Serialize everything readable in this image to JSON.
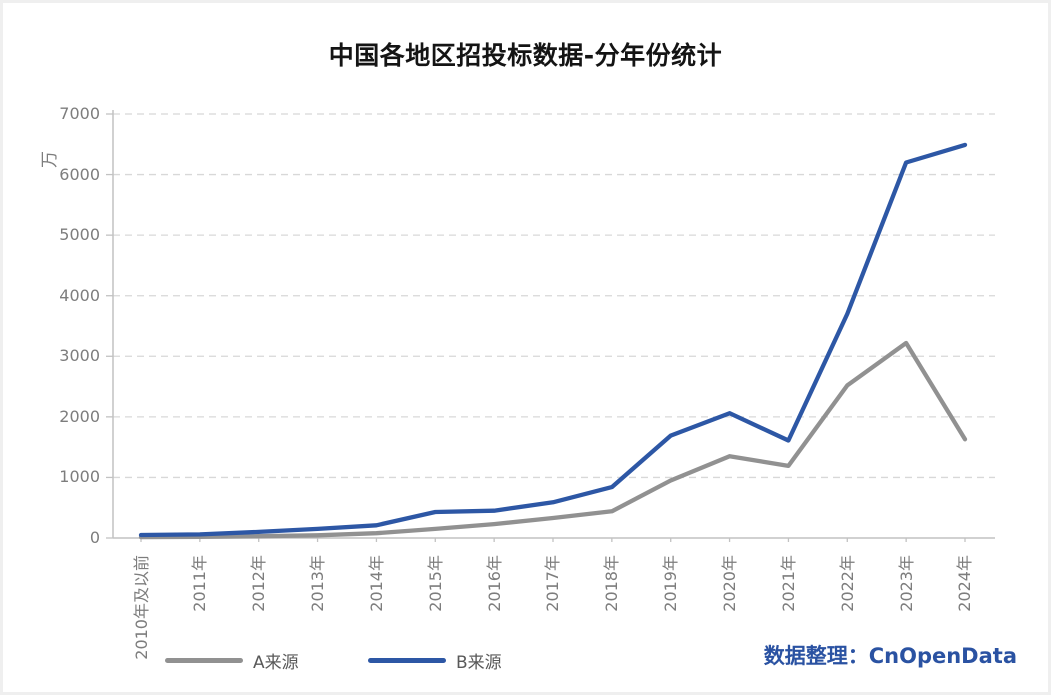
{
  "chart": {
    "attribution": "数据整理：CnOpenData",
    "accent_color": "#2a52a2",
    "axis_color": "#c2c2c2",
    "grid_color": "#d8d8d8",
    "tick_label_color": "#7d7d7d"
  },
  "chart_data": {
    "type": "line",
    "title": "中国各地区招投标数据-分年份统计",
    "xlabel": "",
    "ylabel": "万",
    "ylim": [
      0,
      7000
    ],
    "ytick_step": 1000,
    "yticks": [
      0,
      1000,
      2000,
      3000,
      4000,
      5000,
      6000,
      7000
    ],
    "grid": "horizontal-dashed",
    "legend_position": "bottom",
    "categories": [
      "2010年及以前",
      "2011年",
      "2012年",
      "2013年",
      "2014年",
      "2015年",
      "2016年",
      "2017年",
      "2018年",
      "2019年",
      "2020年",
      "2021年",
      "2022年",
      "2023年",
      "2024年"
    ],
    "series": [
      {
        "name": "A来源",
        "color": "#919191",
        "values": [
          15,
          20,
          30,
          45,
          80,
          150,
          230,
          330,
          440,
          950,
          1350,
          1190,
          2520,
          3220,
          1630
        ]
      },
      {
        "name": "B来源",
        "color": "#2d57a5",
        "values": [
          50,
          60,
          100,
          150,
          210,
          430,
          450,
          590,
          840,
          1690,
          2060,
          1610,
          3700,
          6200,
          6490
        ]
      }
    ]
  }
}
